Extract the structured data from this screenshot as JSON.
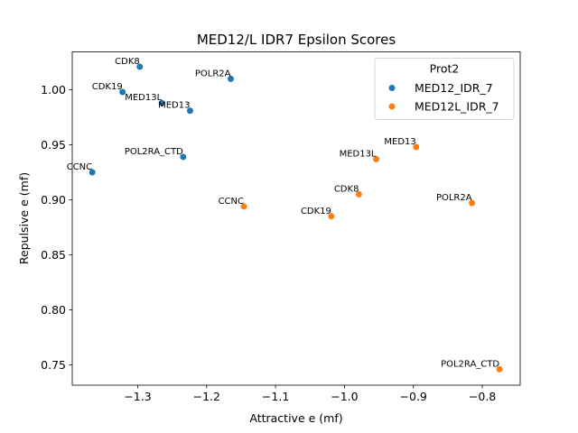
{
  "chart_data": {
    "type": "scatter",
    "title": "MED12/L IDR7 Epsilon Scores",
    "xlabel": "Attractive e (mf)",
    "ylabel": "Repulsive e (mf)",
    "xlim": [
      -1.395,
      -0.745
    ],
    "ylim": [
      0.7315,
      1.0345
    ],
    "xticks": [
      -1.3,
      -1.2,
      -1.1,
      -1.0,
      -0.9,
      -0.8
    ],
    "xtick_labels": [
      "−1.3",
      "−1.2",
      "−1.1",
      "−1.0",
      "−0.9",
      "−0.8"
    ],
    "yticks": [
      0.75,
      0.8,
      0.85,
      0.9,
      0.95,
      1.0
    ],
    "ytick_labels": [
      "0.75",
      "0.80",
      "0.85",
      "0.90",
      "0.95",
      "1.00"
    ],
    "grid": false,
    "legend": {
      "title": "Prot2",
      "placement": "top-right"
    },
    "series": [
      {
        "name": "MED12_IDR_7",
        "color": "#1f77b4",
        "points": [
          {
            "label": "CDK8",
            "x": -1.297,
            "y": 1.021
          },
          {
            "label": "POLR2A",
            "x": -1.165,
            "y": 1.01
          },
          {
            "label": "CDK19",
            "x": -1.322,
            "y": 0.998
          },
          {
            "label": "MED13L",
            "x": -1.265,
            "y": 0.988
          },
          {
            "label": "MED13",
            "x": -1.224,
            "y": 0.981
          },
          {
            "label": "POL2RA_CTD",
            "x": -1.234,
            "y": 0.939
          },
          {
            "label": "CCNC",
            "x": -1.366,
            "y": 0.925
          }
        ]
      },
      {
        "name": "MED12L_IDR_7",
        "color": "#ff7f0e",
        "points": [
          {
            "label": "MED13",
            "x": -0.896,
            "y": 0.948
          },
          {
            "label": "MED13L",
            "x": -0.954,
            "y": 0.937
          },
          {
            "label": "CDK8",
            "x": -0.979,
            "y": 0.905
          },
          {
            "label": "POLR2A",
            "x": -0.815,
            "y": 0.897
          },
          {
            "label": "CCNC",
            "x": -1.146,
            "y": 0.894
          },
          {
            "label": "CDK19",
            "x": -1.019,
            "y": 0.885
          },
          {
            "label": "POL2RA_CTD",
            "x": -0.775,
            "y": 0.746
          }
        ]
      }
    ]
  }
}
